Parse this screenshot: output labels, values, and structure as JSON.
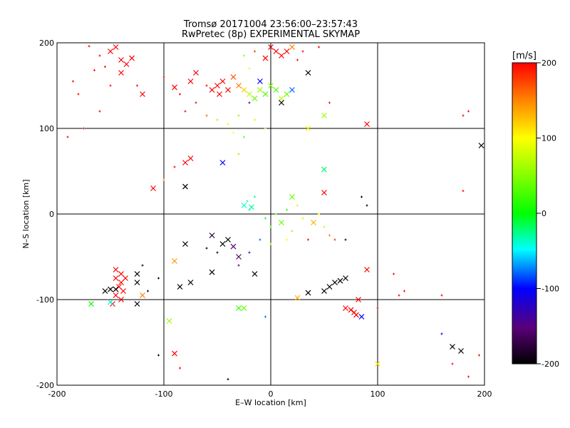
{
  "chart_data": {
    "type": "scatter",
    "title": "Tromsø 20171004 23:56:00–23:57:43",
    "subtitle": "RwPretec (8p) EXPERIMENTAL SKYMAP",
    "xlabel": "E–W location [km]",
    "ylabel": "N–S location [km]",
    "xlim": [
      -200,
      200
    ],
    "ylim": [
      -200,
      200
    ],
    "xticks": [
      -200,
      -100,
      0,
      100,
      200
    ],
    "yticks": [
      -200,
      -100,
      0,
      100,
      200
    ],
    "grid": true,
    "gridlines": [
      -100,
      0,
      100
    ],
    "colorbar": {
      "label": "[m/s]",
      "min": -200,
      "max": 200,
      "ticks": [
        200,
        100,
        0,
        -100,
        -200
      ],
      "colormap": "rainbow (black-purple-blue-cyan-green-yellow-red)"
    },
    "markers": {
      "large": "x",
      "small": "+"
    },
    "points": [
      {
        "x": -170,
        "y": 196,
        "v": 200,
        "m": "+"
      },
      {
        "x": -150,
        "y": 190,
        "v": 200,
        "m": "x"
      },
      {
        "x": -145,
        "y": 195,
        "v": 200,
        "m": "x"
      },
      {
        "x": -160,
        "y": 185,
        "v": 200,
        "m": "+"
      },
      {
        "x": -140,
        "y": 180,
        "v": 200,
        "m": "x"
      },
      {
        "x": -135,
        "y": 175,
        "v": 200,
        "m": "x"
      },
      {
        "x": -130,
        "y": 182,
        "v": 200,
        "m": "x"
      },
      {
        "x": -155,
        "y": 172,
        "v": 200,
        "m": "+"
      },
      {
        "x": -165,
        "y": 168,
        "v": 200,
        "m": "+"
      },
      {
        "x": -185,
        "y": 155,
        "v": 200,
        "m": "+"
      },
      {
        "x": -180,
        "y": 140,
        "v": 200,
        "m": "+"
      },
      {
        "x": -150,
        "y": 150,
        "v": 200,
        "m": "+"
      },
      {
        "x": -140,
        "y": 165,
        "v": 200,
        "m": "x"
      },
      {
        "x": -125,
        "y": 150,
        "v": 200,
        "m": "+"
      },
      {
        "x": -120,
        "y": 140,
        "v": 200,
        "m": "x"
      },
      {
        "x": -160,
        "y": 120,
        "v": 200,
        "m": "+"
      },
      {
        "x": -175,
        "y": 100,
        "v": 200,
        "m": "+"
      },
      {
        "x": -190,
        "y": 90,
        "v": 200,
        "m": "+"
      },
      {
        "x": -100,
        "y": 160,
        "v": 200,
        "m": "+"
      },
      {
        "x": -90,
        "y": 148,
        "v": 200,
        "m": "x"
      },
      {
        "x": -85,
        "y": 140,
        "v": 200,
        "m": "+"
      },
      {
        "x": -75,
        "y": 155,
        "v": 200,
        "m": "x"
      },
      {
        "x": -70,
        "y": 165,
        "v": 200,
        "m": "x"
      },
      {
        "x": -60,
        "y": 150,
        "v": 200,
        "m": "+"
      },
      {
        "x": -55,
        "y": 145,
        "v": 200,
        "m": "x"
      },
      {
        "x": -50,
        "y": 150,
        "v": 200,
        "m": "x"
      },
      {
        "x": -45,
        "y": 155,
        "v": 200,
        "m": "x"
      },
      {
        "x": -40,
        "y": 145,
        "v": 200,
        "m": "x"
      },
      {
        "x": -48,
        "y": 140,
        "v": 200,
        "m": "x"
      },
      {
        "x": -35,
        "y": 160,
        "v": 170,
        "m": "x"
      },
      {
        "x": -30,
        "y": 150,
        "v": 150,
        "m": "x"
      },
      {
        "x": -25,
        "y": 145,
        "v": 120,
        "m": "x"
      },
      {
        "x": -20,
        "y": 140,
        "v": 70,
        "m": "x"
      },
      {
        "x": -15,
        "y": 135,
        "v": 40,
        "m": "x"
      },
      {
        "x": -10,
        "y": 145,
        "v": 60,
        "m": "x"
      },
      {
        "x": -5,
        "y": 140,
        "v": 30,
        "m": "x"
      },
      {
        "x": 0,
        "y": 150,
        "v": 50,
        "m": "x"
      },
      {
        "x": 5,
        "y": 145,
        "v": 30,
        "m": "x"
      },
      {
        "x": 10,
        "y": 135,
        "v": 70,
        "m": "x"
      },
      {
        "x": 15,
        "y": 140,
        "v": 40,
        "m": "x"
      },
      {
        "x": -10,
        "y": 155,
        "v": -100,
        "m": "x"
      },
      {
        "x": -20,
        "y": 130,
        "v": -150,
        "m": "+"
      },
      {
        "x": 20,
        "y": 145,
        "v": -80,
        "m": "x"
      },
      {
        "x": 10,
        "y": 185,
        "v": 200,
        "m": "x"
      },
      {
        "x": 5,
        "y": 190,
        "v": 200,
        "m": "x"
      },
      {
        "x": 0,
        "y": 195,
        "v": 200,
        "m": "x"
      },
      {
        "x": 15,
        "y": 190,
        "v": 200,
        "m": "x"
      },
      {
        "x": 20,
        "y": 195,
        "v": 150,
        "m": "x"
      },
      {
        "x": -5,
        "y": 182,
        "v": 200,
        "m": "x"
      },
      {
        "x": -15,
        "y": 190,
        "v": 180,
        "m": "+"
      },
      {
        "x": -25,
        "y": 185,
        "v": 60,
        "m": "+"
      },
      {
        "x": -20,
        "y": 170,
        "v": 90,
        "m": "+"
      },
      {
        "x": 25,
        "y": 180,
        "v": 200,
        "m": "+"
      },
      {
        "x": 35,
        "y": 165,
        "v": -200,
        "m": "x"
      },
      {
        "x": 10,
        "y": 130,
        "v": -200,
        "m": "x"
      },
      {
        "x": 30,
        "y": 190,
        "v": 200,
        "m": "+"
      },
      {
        "x": 45,
        "y": 195,
        "v": 200,
        "m": "+"
      },
      {
        "x": -70,
        "y": 130,
        "v": 200,
        "m": "+"
      },
      {
        "x": -80,
        "y": 120,
        "v": 200,
        "m": "+"
      },
      {
        "x": -60,
        "y": 115,
        "v": 160,
        "m": "+"
      },
      {
        "x": -50,
        "y": 110,
        "v": 120,
        "m": "+"
      },
      {
        "x": -40,
        "y": 105,
        "v": 90,
        "m": "+"
      },
      {
        "x": -30,
        "y": 115,
        "v": 60,
        "m": "+"
      },
      {
        "x": -35,
        "y": 95,
        "v": 100,
        "m": "+"
      },
      {
        "x": -25,
        "y": 90,
        "v": 40,
        "m": "+"
      },
      {
        "x": -15,
        "y": 110,
        "v": 80,
        "m": "+"
      },
      {
        "x": -5,
        "y": 100,
        "v": 60,
        "m": "+"
      },
      {
        "x": -30,
        "y": 70,
        "v": 120,
        "m": "+"
      },
      {
        "x": -45,
        "y": 60,
        "v": -100,
        "m": "x"
      },
      {
        "x": -75,
        "y": 65,
        "v": 200,
        "m": "x"
      },
      {
        "x": -80,
        "y": 60,
        "v": 200,
        "m": "x"
      },
      {
        "x": -90,
        "y": 55,
        "v": 200,
        "m": "+"
      },
      {
        "x": -110,
        "y": 30,
        "v": 200,
        "m": "x"
      },
      {
        "x": -100,
        "y": 40,
        "v": 130,
        "m": "+"
      },
      {
        "x": -80,
        "y": 32,
        "v": -200,
        "m": "x"
      },
      {
        "x": 35,
        "y": 100,
        "v": 100,
        "m": "x"
      },
      {
        "x": 50,
        "y": 115,
        "v": 60,
        "m": "x"
      },
      {
        "x": 55,
        "y": 130,
        "v": 200,
        "m": "+"
      },
      {
        "x": 90,
        "y": 105,
        "v": 200,
        "m": "x"
      },
      {
        "x": 180,
        "y": 115,
        "v": 200,
        "m": "+"
      },
      {
        "x": 185,
        "y": 120,
        "v": 200,
        "m": "+"
      },
      {
        "x": 197,
        "y": 80,
        "v": -200,
        "m": "x"
      },
      {
        "x": 50,
        "y": 52,
        "v": -20,
        "m": "x"
      },
      {
        "x": 50,
        "y": 25,
        "v": 200,
        "m": "x"
      },
      {
        "x": 85,
        "y": 20,
        "v": -200,
        "m": "+"
      },
      {
        "x": 90,
        "y": 10,
        "v": -200,
        "m": "+"
      },
      {
        "x": 180,
        "y": 27,
        "v": 200,
        "m": "+"
      },
      {
        "x": -25,
        "y": 10,
        "v": -40,
        "m": "x"
      },
      {
        "x": -20,
        "y": 5,
        "v": -40,
        "m": "+"
      },
      {
        "x": -22,
        "y": 15,
        "v": -30,
        "m": "+"
      },
      {
        "x": -18,
        "y": 8,
        "v": -30,
        "m": "x"
      },
      {
        "x": -15,
        "y": 20,
        "v": -30,
        "m": "+"
      },
      {
        "x": 20,
        "y": 20,
        "v": 40,
        "m": "x"
      },
      {
        "x": 25,
        "y": 10,
        "v": 80,
        "m": "+"
      },
      {
        "x": 15,
        "y": 5,
        "v": 20,
        "m": "+"
      },
      {
        "x": 5,
        "y": 0,
        "v": 30,
        "m": "+"
      },
      {
        "x": 10,
        "y": -10,
        "v": 40,
        "m": "x"
      },
      {
        "x": 0,
        "y": -15,
        "v": 30,
        "m": "+"
      },
      {
        "x": -5,
        "y": -5,
        "v": -10,
        "m": "+"
      },
      {
        "x": 30,
        "y": -5,
        "v": 80,
        "m": "+"
      },
      {
        "x": 40,
        "y": -10,
        "v": 130,
        "m": "x"
      },
      {
        "x": 45,
        "y": 0,
        "v": 100,
        "m": "+"
      },
      {
        "x": 50,
        "y": -15,
        "v": 70,
        "m": "+"
      },
      {
        "x": 55,
        "y": -25,
        "v": 150,
        "m": "+"
      },
      {
        "x": 60,
        "y": -30,
        "v": 180,
        "m": "+"
      },
      {
        "x": 35,
        "y": -30,
        "v": 200,
        "m": "+"
      },
      {
        "x": 20,
        "y": -20,
        "v": 120,
        "m": "+"
      },
      {
        "x": 15,
        "y": -30,
        "v": 100,
        "m": "+"
      },
      {
        "x": 0,
        "y": -35,
        "v": 60,
        "m": "+"
      },
      {
        "x": 70,
        "y": -30,
        "v": -200,
        "m": "+"
      },
      {
        "x": -40,
        "y": -30,
        "v": -200,
        "m": "x"
      },
      {
        "x": -45,
        "y": -35,
        "v": -200,
        "m": "x"
      },
      {
        "x": -35,
        "y": -38,
        "v": -150,
        "m": "x"
      },
      {
        "x": -50,
        "y": -45,
        "v": -200,
        "m": "+"
      },
      {
        "x": -30,
        "y": -50,
        "v": -150,
        "m": "x"
      },
      {
        "x": -20,
        "y": -45,
        "v": -120,
        "m": "+"
      },
      {
        "x": -10,
        "y": -30,
        "v": -80,
        "m": "+"
      },
      {
        "x": -60,
        "y": -40,
        "v": -200,
        "m": "+"
      },
      {
        "x": -55,
        "y": -25,
        "v": -180,
        "m": "x"
      },
      {
        "x": -80,
        "y": -35,
        "v": -200,
        "m": "x"
      },
      {
        "x": -90,
        "y": -55,
        "v": 140,
        "m": "x"
      },
      {
        "x": -55,
        "y": -68,
        "v": -200,
        "m": "x"
      },
      {
        "x": -15,
        "y": -70,
        "v": -200,
        "m": "x"
      },
      {
        "x": -30,
        "y": -60,
        "v": -150,
        "m": "+"
      },
      {
        "x": -145,
        "y": -65,
        "v": 200,
        "m": "x"
      },
      {
        "x": -140,
        "y": -70,
        "v": 200,
        "m": "x"
      },
      {
        "x": -145,
        "y": -75,
        "v": 200,
        "m": "x"
      },
      {
        "x": -140,
        "y": -80,
        "v": 200,
        "m": "x"
      },
      {
        "x": -142,
        "y": -85,
        "v": 200,
        "m": "x"
      },
      {
        "x": -138,
        "y": -90,
        "v": 200,
        "m": "x"
      },
      {
        "x": -145,
        "y": -95,
        "v": 200,
        "m": "x"
      },
      {
        "x": -140,
        "y": -100,
        "v": 200,
        "m": "x"
      },
      {
        "x": -148,
        "y": -105,
        "v": 200,
        "m": "x"
      },
      {
        "x": -136,
        "y": -75,
        "v": 200,
        "m": "x"
      },
      {
        "x": -150,
        "y": -88,
        "v": -200,
        "m": "x"
      },
      {
        "x": -155,
        "y": -90,
        "v": -200,
        "m": "x"
      },
      {
        "x": -145,
        "y": -88,
        "v": -200,
        "m": "x"
      },
      {
        "x": -168,
        "y": -105,
        "v": 0,
        "m": "x"
      },
      {
        "x": -150,
        "y": -103,
        "v": -40,
        "m": "x"
      },
      {
        "x": -125,
        "y": -70,
        "v": -200,
        "m": "x"
      },
      {
        "x": -125,
        "y": -80,
        "v": -200,
        "m": "x"
      },
      {
        "x": -120,
        "y": -95,
        "v": 150,
        "m": "x"
      },
      {
        "x": -115,
        "y": -90,
        "v": -200,
        "m": "+"
      },
      {
        "x": -105,
        "y": -75,
        "v": -200,
        "m": "+"
      },
      {
        "x": -125,
        "y": -105,
        "v": -200,
        "m": "x"
      },
      {
        "x": -120,
        "y": -60,
        "v": -200,
        "m": "+"
      },
      {
        "x": -95,
        "y": -125,
        "v": 60,
        "m": "x"
      },
      {
        "x": -85,
        "y": -85,
        "v": -200,
        "m": "x"
      },
      {
        "x": -75,
        "y": -80,
        "v": -200,
        "m": "x"
      },
      {
        "x": -30,
        "y": -110,
        "v": 20,
        "m": "x"
      },
      {
        "x": -25,
        "y": -110,
        "v": 40,
        "m": "x"
      },
      {
        "x": 25,
        "y": -98,
        "v": 130,
        "m": "x"
      },
      {
        "x": 35,
        "y": -92,
        "v": -200,
        "m": "x"
      },
      {
        "x": 50,
        "y": -90,
        "v": -200,
        "m": "x"
      },
      {
        "x": 55,
        "y": -85,
        "v": -200,
        "m": "x"
      },
      {
        "x": 60,
        "y": -80,
        "v": -200,
        "m": "x"
      },
      {
        "x": 65,
        "y": -78,
        "v": -200,
        "m": "x"
      },
      {
        "x": 70,
        "y": -75,
        "v": -200,
        "m": "x"
      },
      {
        "x": 70,
        "y": -110,
        "v": 200,
        "m": "x"
      },
      {
        "x": 75,
        "y": -112,
        "v": 200,
        "m": "x"
      },
      {
        "x": 78,
        "y": -115,
        "v": 200,
        "m": "x"
      },
      {
        "x": 80,
        "y": -118,
        "v": 200,
        "m": "x"
      },
      {
        "x": 82,
        "y": -100,
        "v": 200,
        "m": "x"
      },
      {
        "x": 85,
        "y": -120,
        "v": -100,
        "m": "x"
      },
      {
        "x": 90,
        "y": -65,
        "v": 200,
        "m": "x"
      },
      {
        "x": 100,
        "y": -110,
        "v": 200,
        "m": "+"
      },
      {
        "x": 115,
        "y": -70,
        "v": 200,
        "m": "+"
      },
      {
        "x": 120,
        "y": -95,
        "v": 200,
        "m": "+"
      },
      {
        "x": 125,
        "y": -90,
        "v": 200,
        "m": "+"
      },
      {
        "x": 160,
        "y": -95,
        "v": 200,
        "m": "+"
      },
      {
        "x": 100,
        "y": -175,
        "v": 110,
        "m": "x"
      },
      {
        "x": 170,
        "y": -155,
        "v": -200,
        "m": "x"
      },
      {
        "x": 178,
        "y": -160,
        "v": -200,
        "m": "x"
      },
      {
        "x": 160,
        "y": -140,
        "v": -100,
        "m": "+"
      },
      {
        "x": 170,
        "y": -175,
        "v": 200,
        "m": "+"
      },
      {
        "x": 185,
        "y": -190,
        "v": 200,
        "m": "+"
      },
      {
        "x": 195,
        "y": -165,
        "v": 200,
        "m": "+"
      },
      {
        "x": -90,
        "y": -163,
        "v": 200,
        "m": "x"
      },
      {
        "x": -85,
        "y": -180,
        "v": 200,
        "m": "+"
      },
      {
        "x": -105,
        "y": -165,
        "v": -200,
        "m": "+"
      },
      {
        "x": -40,
        "y": -193,
        "v": -200,
        "m": "+"
      },
      {
        "x": -5,
        "y": -120,
        "v": -80,
        "m": "+"
      }
    ]
  }
}
